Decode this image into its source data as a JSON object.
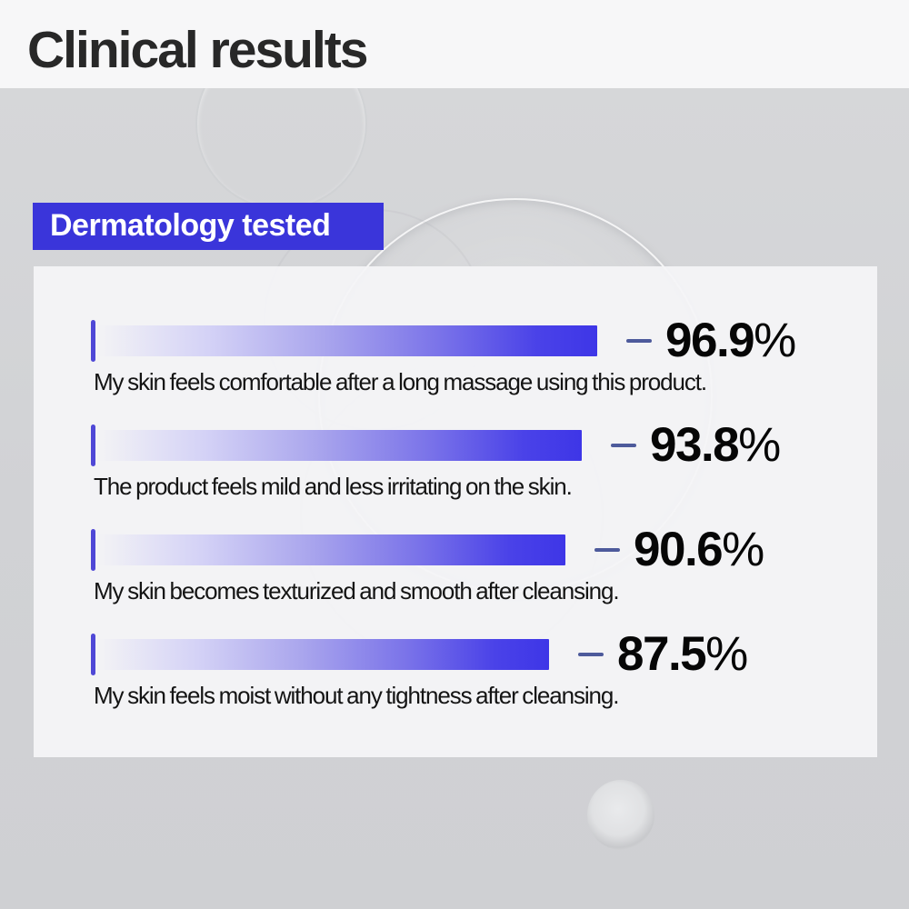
{
  "header": {
    "title": "Clinical results"
  },
  "badge": {
    "label": "Dermatology tested"
  },
  "chart_data": {
    "type": "bar",
    "orientation": "horizontal",
    "title": "Clinical results",
    "subtitle_badge": "Dermatology tested",
    "unit": "%",
    "xlim": [
      0,
      100
    ],
    "grid": false,
    "legend": false,
    "categories": [
      "My skin feels comfortable after a long massage using this product.",
      "The product feels mild and less irritating on the skin.",
      "My skin becomes texturized and smooth after cleansing.",
      "My skin feels moist without any tightness after cleansing."
    ],
    "values": [
      96.9,
      93.8,
      90.6,
      87.5
    ],
    "rows": [
      {
        "value": 96.9,
        "value_label": "96.9",
        "unit": "%",
        "description": "My skin feels comfortable after a long massage using this product."
      },
      {
        "value": 93.8,
        "value_label": "93.8",
        "unit": "%",
        "description": "The product feels mild and less irritating on the skin."
      },
      {
        "value": 90.6,
        "value_label": "90.6",
        "unit": "%",
        "description": "My skin becomes texturized and smooth after cleansing."
      },
      {
        "value": 87.5,
        "value_label": "87.5",
        "unit": "%",
        "description": "My skin feels moist without any tightness after cleansing."
      }
    ]
  },
  "colors": {
    "accent_blue": "#3a35da",
    "bar_gradient_end": "#3e36e7",
    "bar_gradient_mid": "#aaa6ed",
    "tick_blue": "#4f48d6",
    "dash_blue_gray": "#4d5a9b",
    "page_background": "#d2d3d6",
    "top_band": "#f7f7f8",
    "panel": "#f4f4f6",
    "title_text": "#282828",
    "body_text": "#141414"
  }
}
